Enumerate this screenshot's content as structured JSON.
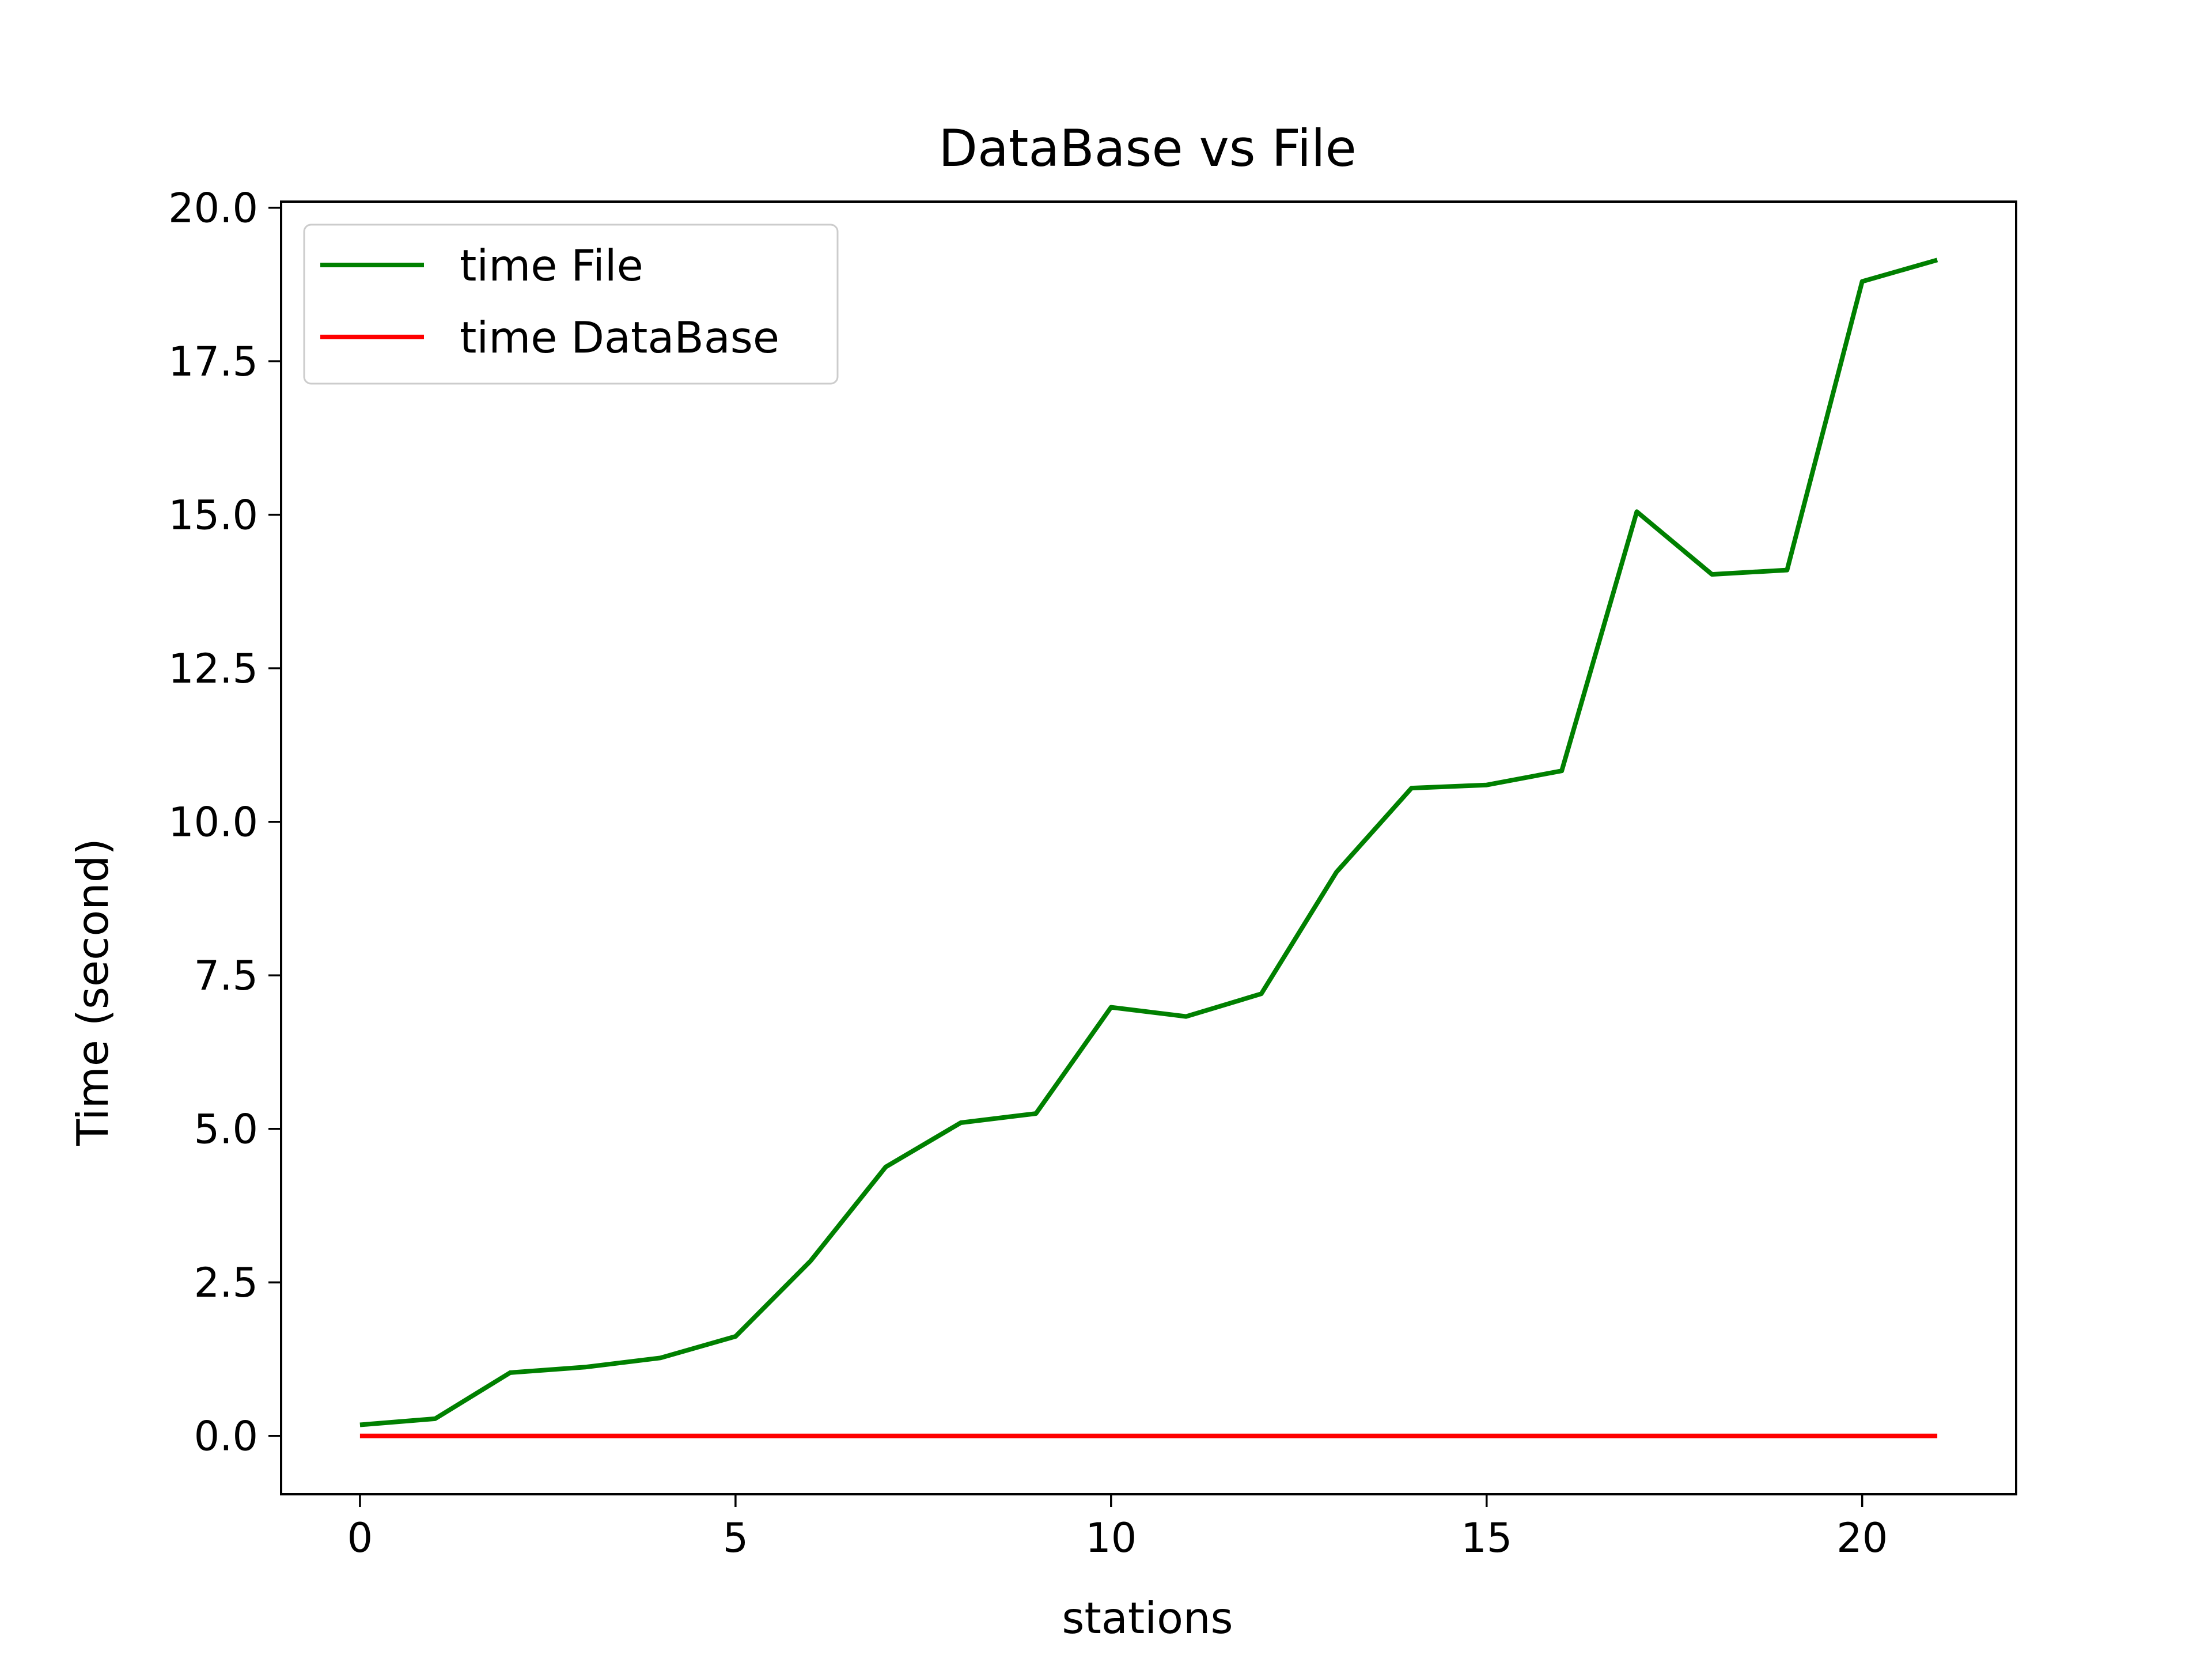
{
  "chart_data": {
    "type": "line",
    "title": "DataBase vs File",
    "xlabel": "stations",
    "ylabel": "Time (second)",
    "xlim": [
      -1.05,
      22.05
    ],
    "ylim": [
      -0.95,
      20.1
    ],
    "xticks": [
      0,
      5,
      10,
      15,
      20
    ],
    "xtick_labels": [
      "0",
      "5",
      "10",
      "15",
      "20"
    ],
    "yticks": [
      0,
      2.5,
      5,
      7.5,
      10,
      12.5,
      15,
      17.5,
      20
    ],
    "ytick_labels": [
      "0.0",
      "2.5",
      "5.0",
      "7.5",
      "10.0",
      "12.5",
      "15.0",
      "17.5",
      "20.0"
    ],
    "grid": false,
    "legend_position": "top-left",
    "x": [
      0,
      1,
      2,
      3,
      4,
      5,
      6,
      7,
      8,
      9,
      10,
      11,
      12,
      13,
      14,
      15,
      16,
      17,
      18,
      19,
      20,
      21
    ],
    "series": [
      {
        "name": "time File",
        "color": "#008000",
        "values": [
          0.18,
          0.28,
          1.03,
          1.12,
          1.27,
          1.62,
          2.85,
          4.38,
          5.1,
          5.25,
          6.98,
          6.83,
          7.2,
          9.18,
          10.55,
          10.6,
          10.83,
          15.05,
          14.03,
          14.1,
          18.8,
          19.15
        ]
      },
      {
        "name": "time DataBase",
        "color": "#ff0000",
        "values": [
          0.0,
          0.0,
          0.0,
          0.0,
          0.0,
          0.0,
          0.0,
          0.0,
          0.0,
          0.0,
          0.0,
          0.0,
          0.0,
          0.0,
          0.0,
          0.0,
          0.0,
          0.0,
          0.0,
          0.0,
          0.0,
          0.0
        ]
      }
    ]
  }
}
